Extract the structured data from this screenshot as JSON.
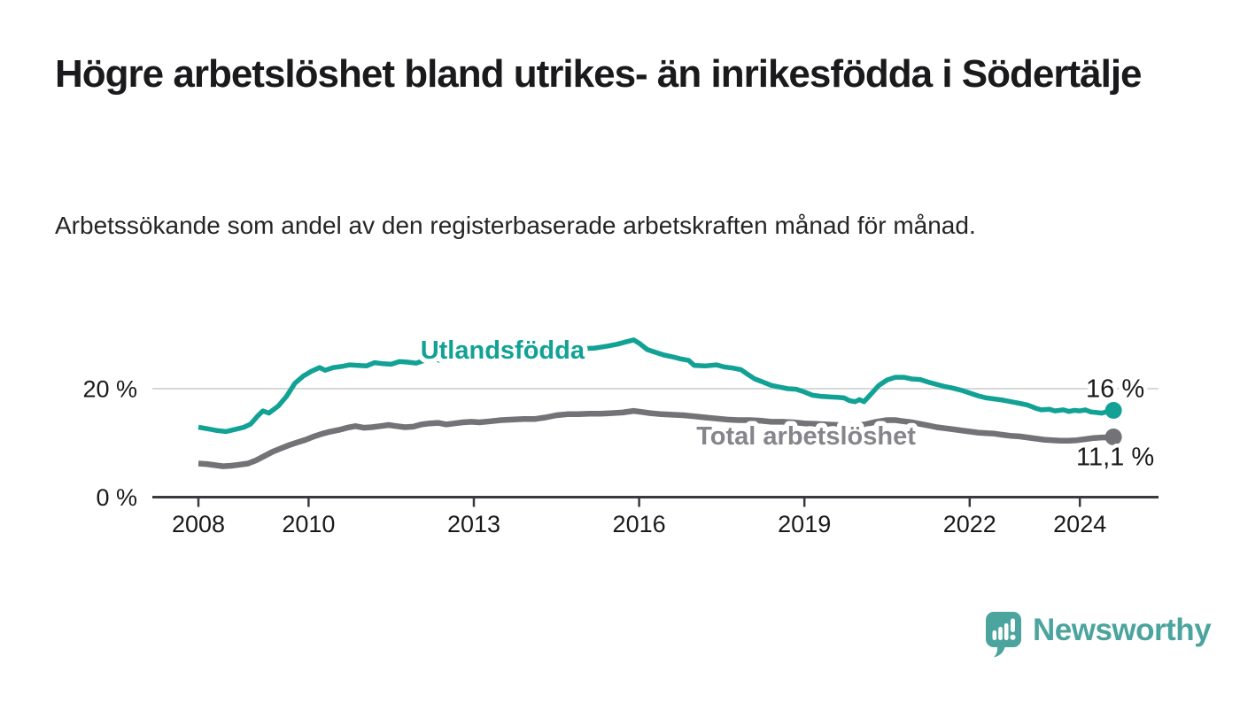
{
  "header": {
    "title": "Högre arbetslöshet bland utrikes- än inrikesfödda i Södertälje",
    "subtitle": "Arbetssökande som andel av den registerbaserade arbetskraften månad för månad."
  },
  "footer": {
    "brand": "Newsworthy",
    "logo_icon": "bar-chart-speech-bubble"
  },
  "colors": {
    "teal": "#12A295",
    "gray": "#737377",
    "gray_label": "#85858B",
    "logo_teal": "#4BA49D",
    "axis": "#3A3A3E",
    "gridline": "#D8D8D8",
    "text_dark": "#1A1A1C"
  },
  "chart_data": {
    "type": "line",
    "title": "Högre arbetslöshet bland utrikes- än inrikesfödda i Södertälje",
    "subtitle": "Arbetssökande som andel av den registerbaserade arbetskraften månad för månad.",
    "xlabel": "",
    "ylabel": "",
    "grid": "horizontal-20-only",
    "legend_position": "inline-labels",
    "xlim": [
      2007.15,
      2025.45
    ],
    "ylim": [
      0,
      32
    ],
    "x_ticks": [
      {
        "year": 2008,
        "label": "2008"
      },
      {
        "year": 2010,
        "label": "2010"
      },
      {
        "year": 2013,
        "label": "2013"
      },
      {
        "year": 2016,
        "label": "2016"
      },
      {
        "year": 2019,
        "label": "2019"
      },
      {
        "year": 2022,
        "label": "2022"
      },
      {
        "year": 2024,
        "label": "2024"
      }
    ],
    "y_ticks": [
      {
        "value": 20,
        "label": "20 %",
        "gridline": true
      },
      {
        "value": 0,
        "label": "0 %",
        "gridline": false
      }
    ],
    "series": [
      {
        "id": "utlandsfodda",
        "name": "Utlandsfödda",
        "color": "#12A295",
        "end_label": "16 %",
        "last_value": 16.0,
        "label_pos": [
          2013.52,
          27.2
        ],
        "points": [
          [
            2008.0,
            12.9
          ],
          [
            2008.17,
            12.6
          ],
          [
            2008.33,
            12.3
          ],
          [
            2008.5,
            12.1
          ],
          [
            2008.67,
            12.5
          ],
          [
            2008.83,
            12.9
          ],
          [
            2008.95,
            13.5
          ],
          [
            2009.08,
            15.0
          ],
          [
            2009.17,
            15.9
          ],
          [
            2009.28,
            15.5
          ],
          [
            2009.45,
            16.8
          ],
          [
            2009.6,
            18.6
          ],
          [
            2009.75,
            21.0
          ],
          [
            2009.9,
            22.3
          ],
          [
            2010.05,
            23.2
          ],
          [
            2010.2,
            23.9
          ],
          [
            2010.3,
            23.4
          ],
          [
            2010.45,
            23.9
          ],
          [
            2010.6,
            24.1
          ],
          [
            2010.75,
            24.4
          ],
          [
            2010.9,
            24.3
          ],
          [
            2011.05,
            24.2
          ],
          [
            2011.2,
            24.8
          ],
          [
            2011.35,
            24.6
          ],
          [
            2011.5,
            24.5
          ],
          [
            2011.65,
            25.0
          ],
          [
            2011.8,
            24.9
          ],
          [
            2011.95,
            24.7
          ],
          [
            2012.1,
            25.2
          ],
          [
            2012.3,
            25.4
          ],
          [
            2012.45,
            25.1
          ],
          [
            2012.6,
            25.3
          ],
          [
            2012.75,
            25.7
          ],
          [
            2012.9,
            25.8
          ],
          [
            2013.05,
            25.6
          ],
          [
            2013.2,
            26.0
          ],
          [
            2013.35,
            26.2
          ],
          [
            2013.5,
            26.4
          ],
          [
            2013.65,
            26.6
          ],
          [
            2013.8,
            26.8
          ],
          [
            2013.95,
            27.0
          ],
          [
            2014.1,
            26.6
          ],
          [
            2014.25,
            26.9
          ],
          [
            2014.4,
            27.1
          ],
          [
            2014.6,
            27.2
          ],
          [
            2014.8,
            27.3
          ],
          [
            2015.0,
            27.4
          ],
          [
            2015.2,
            27.5
          ],
          [
            2015.4,
            27.8
          ],
          [
            2015.6,
            28.2
          ],
          [
            2015.75,
            28.6
          ],
          [
            2015.9,
            29.0
          ],
          [
            2016.0,
            28.4
          ],
          [
            2016.15,
            27.2
          ],
          [
            2016.3,
            26.7
          ],
          [
            2016.45,
            26.2
          ],
          [
            2016.6,
            25.9
          ],
          [
            2016.75,
            25.5
          ],
          [
            2016.9,
            25.2
          ],
          [
            2017.0,
            24.3
          ],
          [
            2017.2,
            24.2
          ],
          [
            2017.4,
            24.4
          ],
          [
            2017.55,
            24.0
          ],
          [
            2017.7,
            23.8
          ],
          [
            2017.85,
            23.5
          ],
          [
            2017.95,
            22.8
          ],
          [
            2018.1,
            21.8
          ],
          [
            2018.25,
            21.2
          ],
          [
            2018.4,
            20.6
          ],
          [
            2018.55,
            20.3
          ],
          [
            2018.7,
            20.0
          ],
          [
            2018.85,
            19.9
          ],
          [
            2019.0,
            19.4
          ],
          [
            2019.15,
            18.8
          ],
          [
            2019.3,
            18.6
          ],
          [
            2019.45,
            18.5
          ],
          [
            2019.6,
            18.4
          ],
          [
            2019.72,
            18.3
          ],
          [
            2019.82,
            17.8
          ],
          [
            2019.92,
            17.6
          ],
          [
            2020.0,
            18.0
          ],
          [
            2020.08,
            17.6
          ],
          [
            2020.2,
            18.9
          ],
          [
            2020.35,
            20.6
          ],
          [
            2020.5,
            21.6
          ],
          [
            2020.65,
            22.1
          ],
          [
            2020.8,
            22.1
          ],
          [
            2020.95,
            21.8
          ],
          [
            2021.1,
            21.7
          ],
          [
            2021.25,
            21.2
          ],
          [
            2021.4,
            20.8
          ],
          [
            2021.55,
            20.4
          ],
          [
            2021.7,
            20.1
          ],
          [
            2021.85,
            19.7
          ],
          [
            2022.0,
            19.2
          ],
          [
            2022.15,
            18.7
          ],
          [
            2022.3,
            18.3
          ],
          [
            2022.45,
            18.1
          ],
          [
            2022.6,
            17.9
          ],
          [
            2022.75,
            17.6
          ],
          [
            2022.9,
            17.3
          ],
          [
            2023.05,
            17.0
          ],
          [
            2023.2,
            16.4
          ],
          [
            2023.3,
            16.1
          ],
          [
            2023.45,
            16.2
          ],
          [
            2023.55,
            15.9
          ],
          [
            2023.7,
            16.1
          ],
          [
            2023.8,
            15.8
          ],
          [
            2023.9,
            16.0
          ],
          [
            2024.0,
            15.9
          ],
          [
            2024.1,
            16.1
          ],
          [
            2024.2,
            15.7
          ],
          [
            2024.3,
            15.6
          ],
          [
            2024.4,
            15.5
          ],
          [
            2024.5,
            15.8
          ],
          [
            2024.61,
            16.0
          ]
        ]
      },
      {
        "id": "total-arbetsloshet",
        "name": "Total arbetslöshet",
        "color": "#737377",
        "end_label": "11,1 %",
        "last_value": 11.1,
        "label_pos": [
          2019.03,
          11.35
        ],
        "points": [
          [
            2008.0,
            6.2
          ],
          [
            2008.15,
            6.1
          ],
          [
            2008.3,
            5.9
          ],
          [
            2008.45,
            5.7
          ],
          [
            2008.6,
            5.8
          ],
          [
            2008.75,
            6.0
          ],
          [
            2008.9,
            6.2
          ],
          [
            2009.05,
            6.8
          ],
          [
            2009.2,
            7.6
          ],
          [
            2009.35,
            8.4
          ],
          [
            2009.5,
            9.0
          ],
          [
            2009.65,
            9.6
          ],
          [
            2009.8,
            10.1
          ],
          [
            2009.95,
            10.6
          ],
          [
            2010.1,
            11.2
          ],
          [
            2010.25,
            11.7
          ],
          [
            2010.4,
            12.1
          ],
          [
            2010.55,
            12.4
          ],
          [
            2010.7,
            12.8
          ],
          [
            2010.85,
            13.1
          ],
          [
            2011.0,
            12.8
          ],
          [
            2011.15,
            12.9
          ],
          [
            2011.3,
            13.1
          ],
          [
            2011.45,
            13.3
          ],
          [
            2011.6,
            13.1
          ],
          [
            2011.75,
            12.9
          ],
          [
            2011.9,
            13.0
          ],
          [
            2012.05,
            13.4
          ],
          [
            2012.2,
            13.6
          ],
          [
            2012.35,
            13.7
          ],
          [
            2012.5,
            13.4
          ],
          [
            2012.65,
            13.6
          ],
          [
            2012.8,
            13.8
          ],
          [
            2012.95,
            13.9
          ],
          [
            2013.1,
            13.8
          ],
          [
            2013.3,
            14.0
          ],
          [
            2013.5,
            14.2
          ],
          [
            2013.7,
            14.3
          ],
          [
            2013.9,
            14.4
          ],
          [
            2014.1,
            14.4
          ],
          [
            2014.3,
            14.7
          ],
          [
            2014.5,
            15.1
          ],
          [
            2014.7,
            15.3
          ],
          [
            2014.9,
            15.3
          ],
          [
            2015.1,
            15.4
          ],
          [
            2015.3,
            15.4
          ],
          [
            2015.5,
            15.5
          ],
          [
            2015.7,
            15.6
          ],
          [
            2015.9,
            15.9
          ],
          [
            2016.05,
            15.7
          ],
          [
            2016.2,
            15.5
          ],
          [
            2016.4,
            15.3
          ],
          [
            2016.6,
            15.2
          ],
          [
            2016.8,
            15.1
          ],
          [
            2017.0,
            14.9
          ],
          [
            2017.2,
            14.7
          ],
          [
            2017.4,
            14.5
          ],
          [
            2017.6,
            14.3
          ],
          [
            2017.8,
            14.2
          ],
          [
            2018.0,
            14.2
          ],
          [
            2018.2,
            14.1
          ],
          [
            2018.4,
            13.9
          ],
          [
            2018.6,
            13.9
          ],
          [
            2018.8,
            13.8
          ],
          [
            2019.0,
            13.6
          ],
          [
            2019.2,
            13.5
          ],
          [
            2019.4,
            13.4
          ],
          [
            2019.6,
            13.3
          ],
          [
            2019.8,
            13.3
          ],
          [
            2019.95,
            13.2
          ],
          [
            2020.1,
            13.4
          ],
          [
            2020.3,
            13.9
          ],
          [
            2020.5,
            14.2
          ],
          [
            2020.65,
            14.2
          ],
          [
            2020.8,
            14.0
          ],
          [
            2020.95,
            13.8
          ],
          [
            2021.1,
            13.5
          ],
          [
            2021.25,
            13.2
          ],
          [
            2021.4,
            12.9
          ],
          [
            2021.55,
            12.7
          ],
          [
            2021.7,
            12.5
          ],
          [
            2021.85,
            12.3
          ],
          [
            2022.0,
            12.1
          ],
          [
            2022.15,
            11.9
          ],
          [
            2022.3,
            11.8
          ],
          [
            2022.45,
            11.7
          ],
          [
            2022.6,
            11.5
          ],
          [
            2022.75,
            11.3
          ],
          [
            2022.9,
            11.2
          ],
          [
            2023.05,
            11.0
          ],
          [
            2023.2,
            10.8
          ],
          [
            2023.35,
            10.6
          ],
          [
            2023.5,
            10.5
          ],
          [
            2023.65,
            10.4
          ],
          [
            2023.8,
            10.4
          ],
          [
            2023.95,
            10.5
          ],
          [
            2024.1,
            10.7
          ],
          [
            2024.25,
            10.9
          ],
          [
            2024.4,
            11.0
          ],
          [
            2024.5,
            11.0
          ],
          [
            2024.61,
            11.1
          ]
        ]
      }
    ]
  }
}
